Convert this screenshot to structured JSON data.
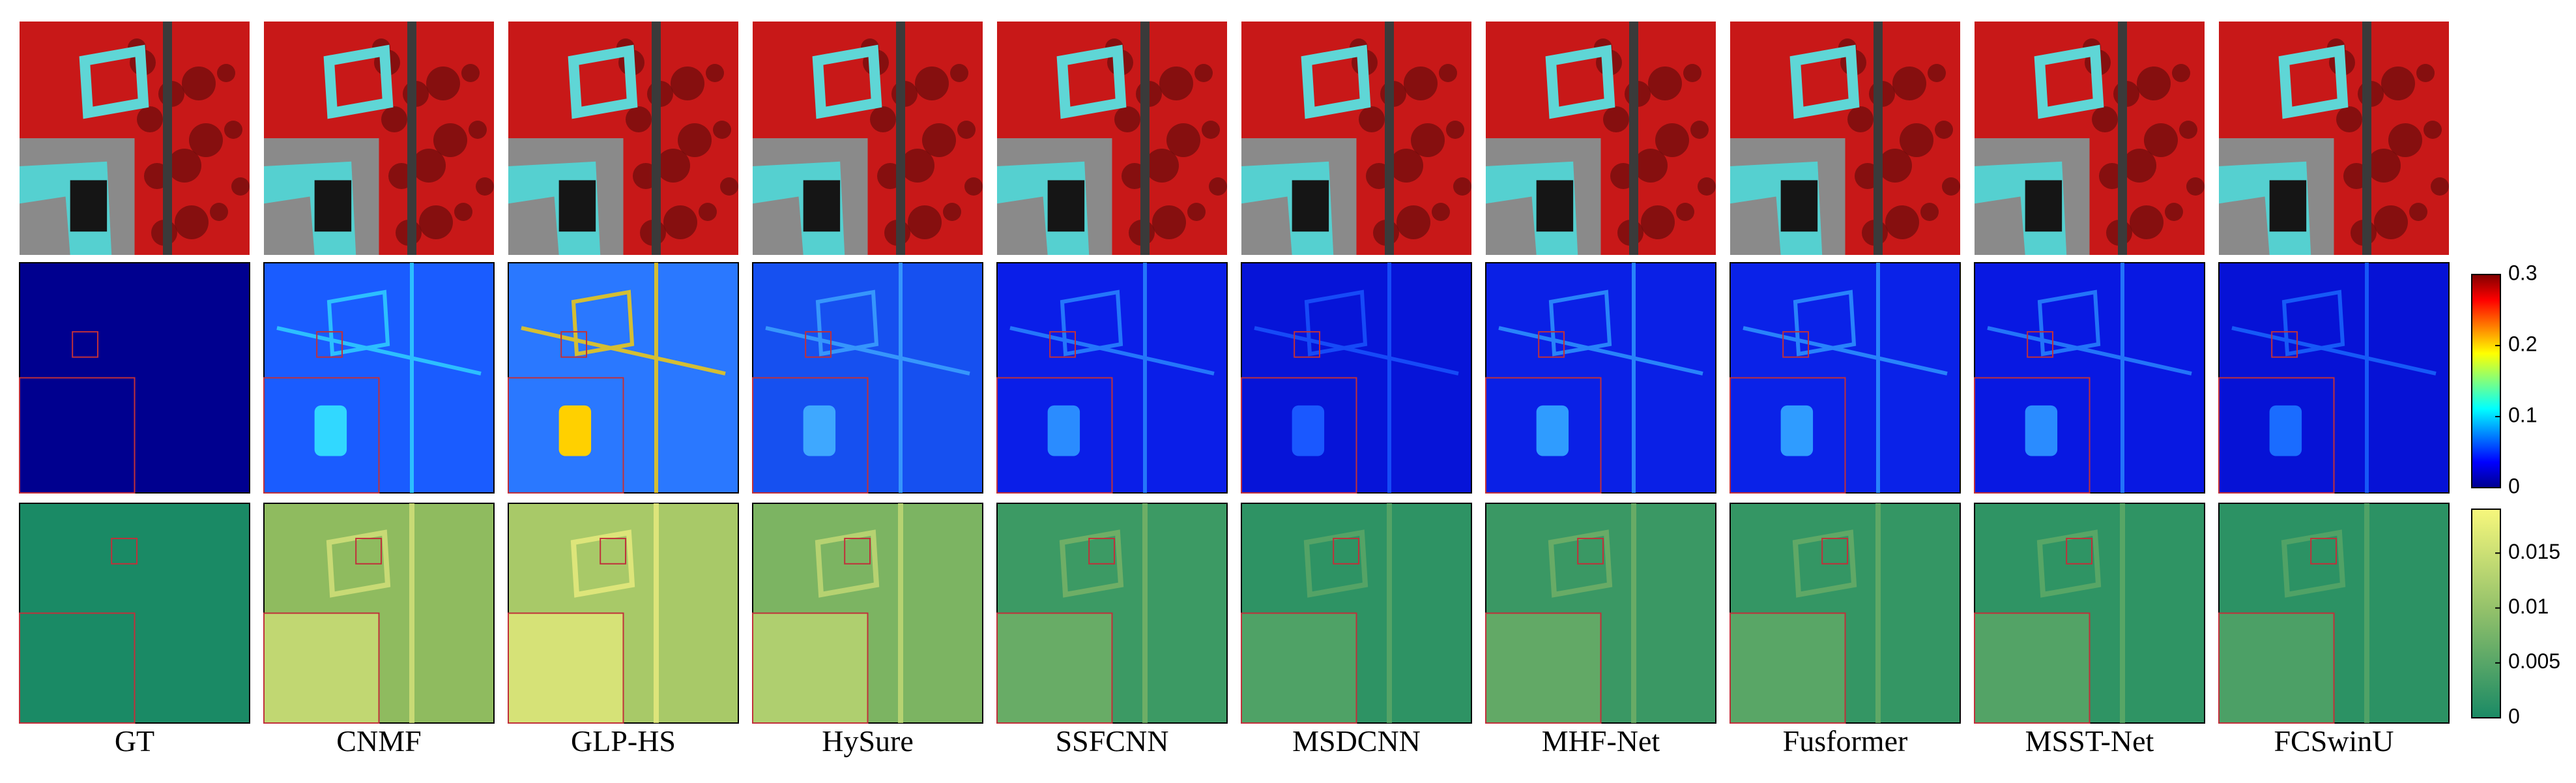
{
  "columns": [
    "GT",
    "CNMF",
    "GLP-HS",
    "HySure",
    "SSFCNN",
    "MSDCNN",
    "MHF-Net",
    "Fusformer",
    "MSST-Net",
    "FCSwinU"
  ],
  "colorbars": [
    {
      "lim": [
        0,
        0.3
      ],
      "ticks": [
        0,
        0.1,
        0.2,
        0.3
      ]
    },
    {
      "lim": [
        0,
        0.019
      ],
      "ticks": [
        0,
        0.005,
        0.01,
        0.015
      ]
    }
  ]
}
